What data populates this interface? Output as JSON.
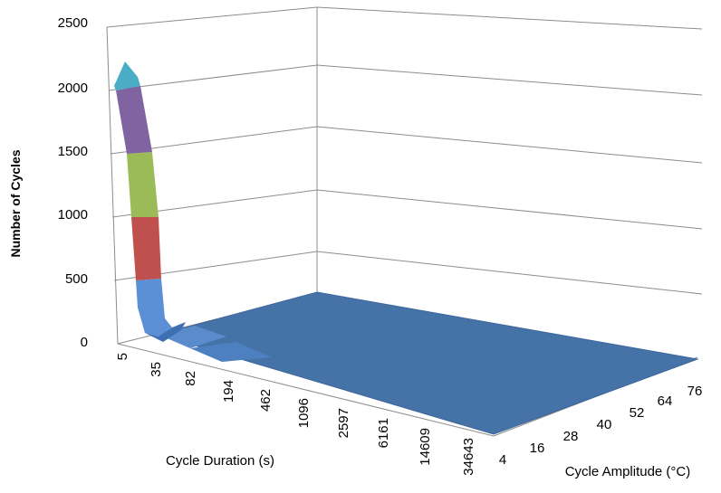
{
  "chart_data": {
    "type": "surface",
    "title": "",
    "ylabel": "Number of Cycles",
    "xlabel": "Cycle Duration (s)",
    "zlabel": "Cycle Amplitude (°C)",
    "ylim": [
      0,
      2500
    ],
    "y_ticks": [
      "0",
      "500",
      "1000",
      "1500",
      "2000",
      "2500"
    ],
    "duration_ticks": [
      "5",
      "35",
      "82",
      "194",
      "462",
      "1096",
      "2597",
      "6161",
      "14609",
      "34643"
    ],
    "amplitude_ticks": [
      "4",
      "16",
      "28",
      "40",
      "52",
      "64",
      "76"
    ],
    "band_colors": [
      "#4F81BD",
      "#C0504D",
      "#9BBB59",
      "#8064A2",
      "#4BACC6"
    ],
    "peak_profile": {
      "duration": [
        "5",
        "35",
        "82",
        "194",
        "462"
      ],
      "cycles_at_amplitude_4": [
        2150,
        350,
        60,
        15,
        5
      ]
    },
    "grid": true
  }
}
